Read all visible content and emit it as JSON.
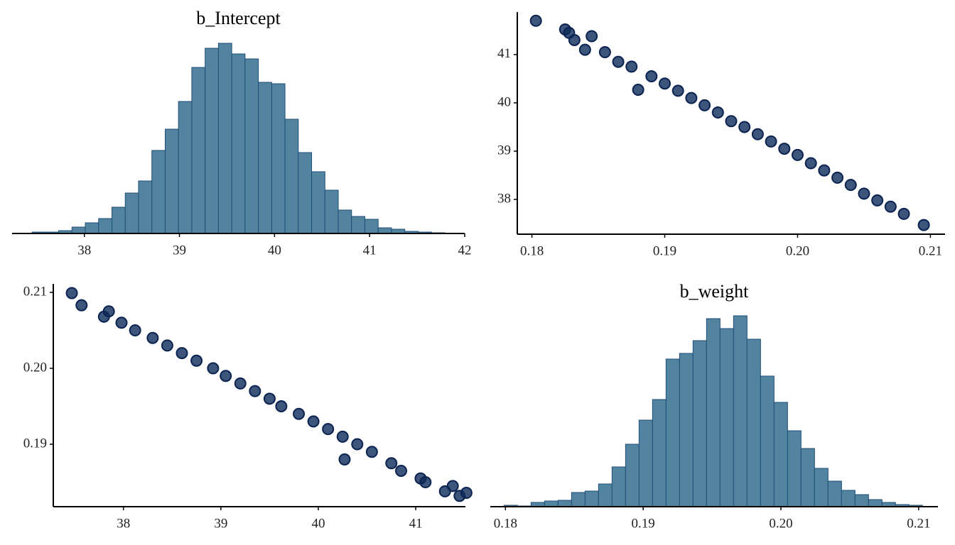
{
  "chart_data": [
    {
      "type": "histogram",
      "title": "b_Intercept",
      "color": "#52849f",
      "edgecolor": "#1f4e79",
      "bins": [
        37.45,
        37.59,
        37.73,
        37.87,
        38.01,
        38.15,
        38.29,
        38.43,
        38.57,
        38.71,
        38.85,
        38.99,
        39.13,
        39.27,
        39.41,
        39.55,
        39.69,
        39.83,
        39.97,
        40.11,
        40.25,
        40.39,
        40.53,
        40.67,
        40.81,
        40.95,
        41.09,
        41.23,
        41.37,
        41.51,
        41.65,
        41.79
      ],
      "values": [
        2,
        2,
        4,
        9,
        15,
        21,
        37,
        57,
        74,
        117,
        147,
        186,
        234,
        261,
        268,
        253,
        246,
        213,
        211,
        161,
        114,
        87,
        61,
        33,
        24,
        20,
        8,
        6,
        3,
        2,
        1
      ],
      "xlim": [
        37.24,
        42.0
      ],
      "xticks": [
        38,
        39,
        40,
        41,
        42
      ],
      "ylim": [
        0,
        285
      ]
    },
    {
      "type": "scatter",
      "color": "#0d2b5a",
      "edgecolor": "#0b2350",
      "x": [
        0.1803,
        0.1825,
        0.1828,
        0.1832,
        0.1845,
        0.184,
        0.1855,
        0.1865,
        0.1875,
        0.188,
        0.189,
        0.19,
        0.191,
        0.192,
        0.193,
        0.194,
        0.195,
        0.196,
        0.197,
        0.198,
        0.199,
        0.2,
        0.201,
        0.202,
        0.203,
        0.204,
        0.205,
        0.206,
        0.207,
        0.208,
        0.2095
      ],
      "values": [
        41.7,
        41.52,
        41.45,
        41.3,
        41.38,
        41.1,
        41.05,
        40.85,
        40.75,
        40.27,
        40.55,
        40.4,
        40.25,
        40.1,
        39.95,
        39.8,
        39.62,
        39.5,
        39.35,
        39.2,
        39.05,
        38.92,
        38.75,
        38.6,
        38.45,
        38.3,
        38.12,
        37.98,
        37.85,
        37.7,
        37.47
      ],
      "xlim": [
        0.1789,
        0.2111
      ],
      "xticks": [
        0.18,
        0.19,
        {
          "value": 0.2,
          "label": "0.20"
        },
        0.21
      ],
      "ylim": [
        37.28,
        41.88
      ],
      "yticks": [
        38,
        39,
        40,
        41
      ]
    },
    {
      "type": "scatter",
      "color": "#0d2b5a",
      "edgecolor": "#0b2350",
      "x": [
        37.47,
        37.57,
        37.8,
        37.85,
        37.98,
        38.12,
        38.3,
        38.45,
        38.6,
        38.75,
        38.92,
        39.05,
        39.2,
        39.35,
        39.5,
        39.62,
        39.8,
        39.95,
        40.1,
        40.25,
        40.4,
        40.55,
        40.27,
        40.75,
        40.85,
        41.05,
        41.1,
        41.38,
        41.3,
        41.45,
        41.52
      ],
      "values": [
        0.2099,
        0.2083,
        0.2068,
        0.2075,
        0.206,
        0.205,
        0.204,
        0.203,
        0.202,
        0.201,
        0.2,
        0.199,
        0.198,
        0.197,
        0.196,
        0.195,
        0.194,
        0.193,
        0.192,
        0.191,
        0.19,
        0.189,
        0.188,
        0.1875,
        0.1865,
        0.1855,
        0.185,
        0.1845,
        0.1838,
        0.1832,
        0.1836
      ],
      "xlim": [
        37.28,
        41.51
      ],
      "xticks": [
        38,
        39,
        40,
        41
      ],
      "ylim": [
        0.18178,
        0.21112
      ],
      "yticks": [
        0.19,
        {
          "value": 0.2,
          "label": "0.20"
        },
        0.21
      ]
    },
    {
      "type": "histogram",
      "title": "b_weight",
      "color": "#52849f",
      "edgecolor": "#1f4e79",
      "bins": [
        0.1799,
        0.18088,
        0.18186,
        0.18284,
        0.18382,
        0.1848,
        0.18578,
        0.18676,
        0.18774,
        0.18872,
        0.1897,
        0.19068,
        0.19166,
        0.19264,
        0.19362,
        0.1946,
        0.19558,
        0.19656,
        0.19754,
        0.19852,
        0.1995,
        0.20048,
        0.20146,
        0.20244,
        0.20342,
        0.2044,
        0.20538,
        0.20636,
        0.20734,
        0.20832,
        0.2093,
        0.21028
      ],
      "values": [
        2,
        1,
        6,
        8,
        9,
        20,
        22,
        32,
        56,
        88,
        122,
        151,
        208,
        216,
        234,
        265,
        251,
        269,
        236,
        184,
        147,
        107,
        82,
        54,
        36,
        23,
        17,
        10,
        6,
        3,
        2
      ],
      "xlim": [
        0.1789,
        0.2114
      ],
      "xticks": [
        0.18,
        0.19,
        {
          "value": 0.2,
          "label": "0.20"
        },
        0.21
      ],
      "ylim": [
        0,
        285
      ]
    }
  ]
}
